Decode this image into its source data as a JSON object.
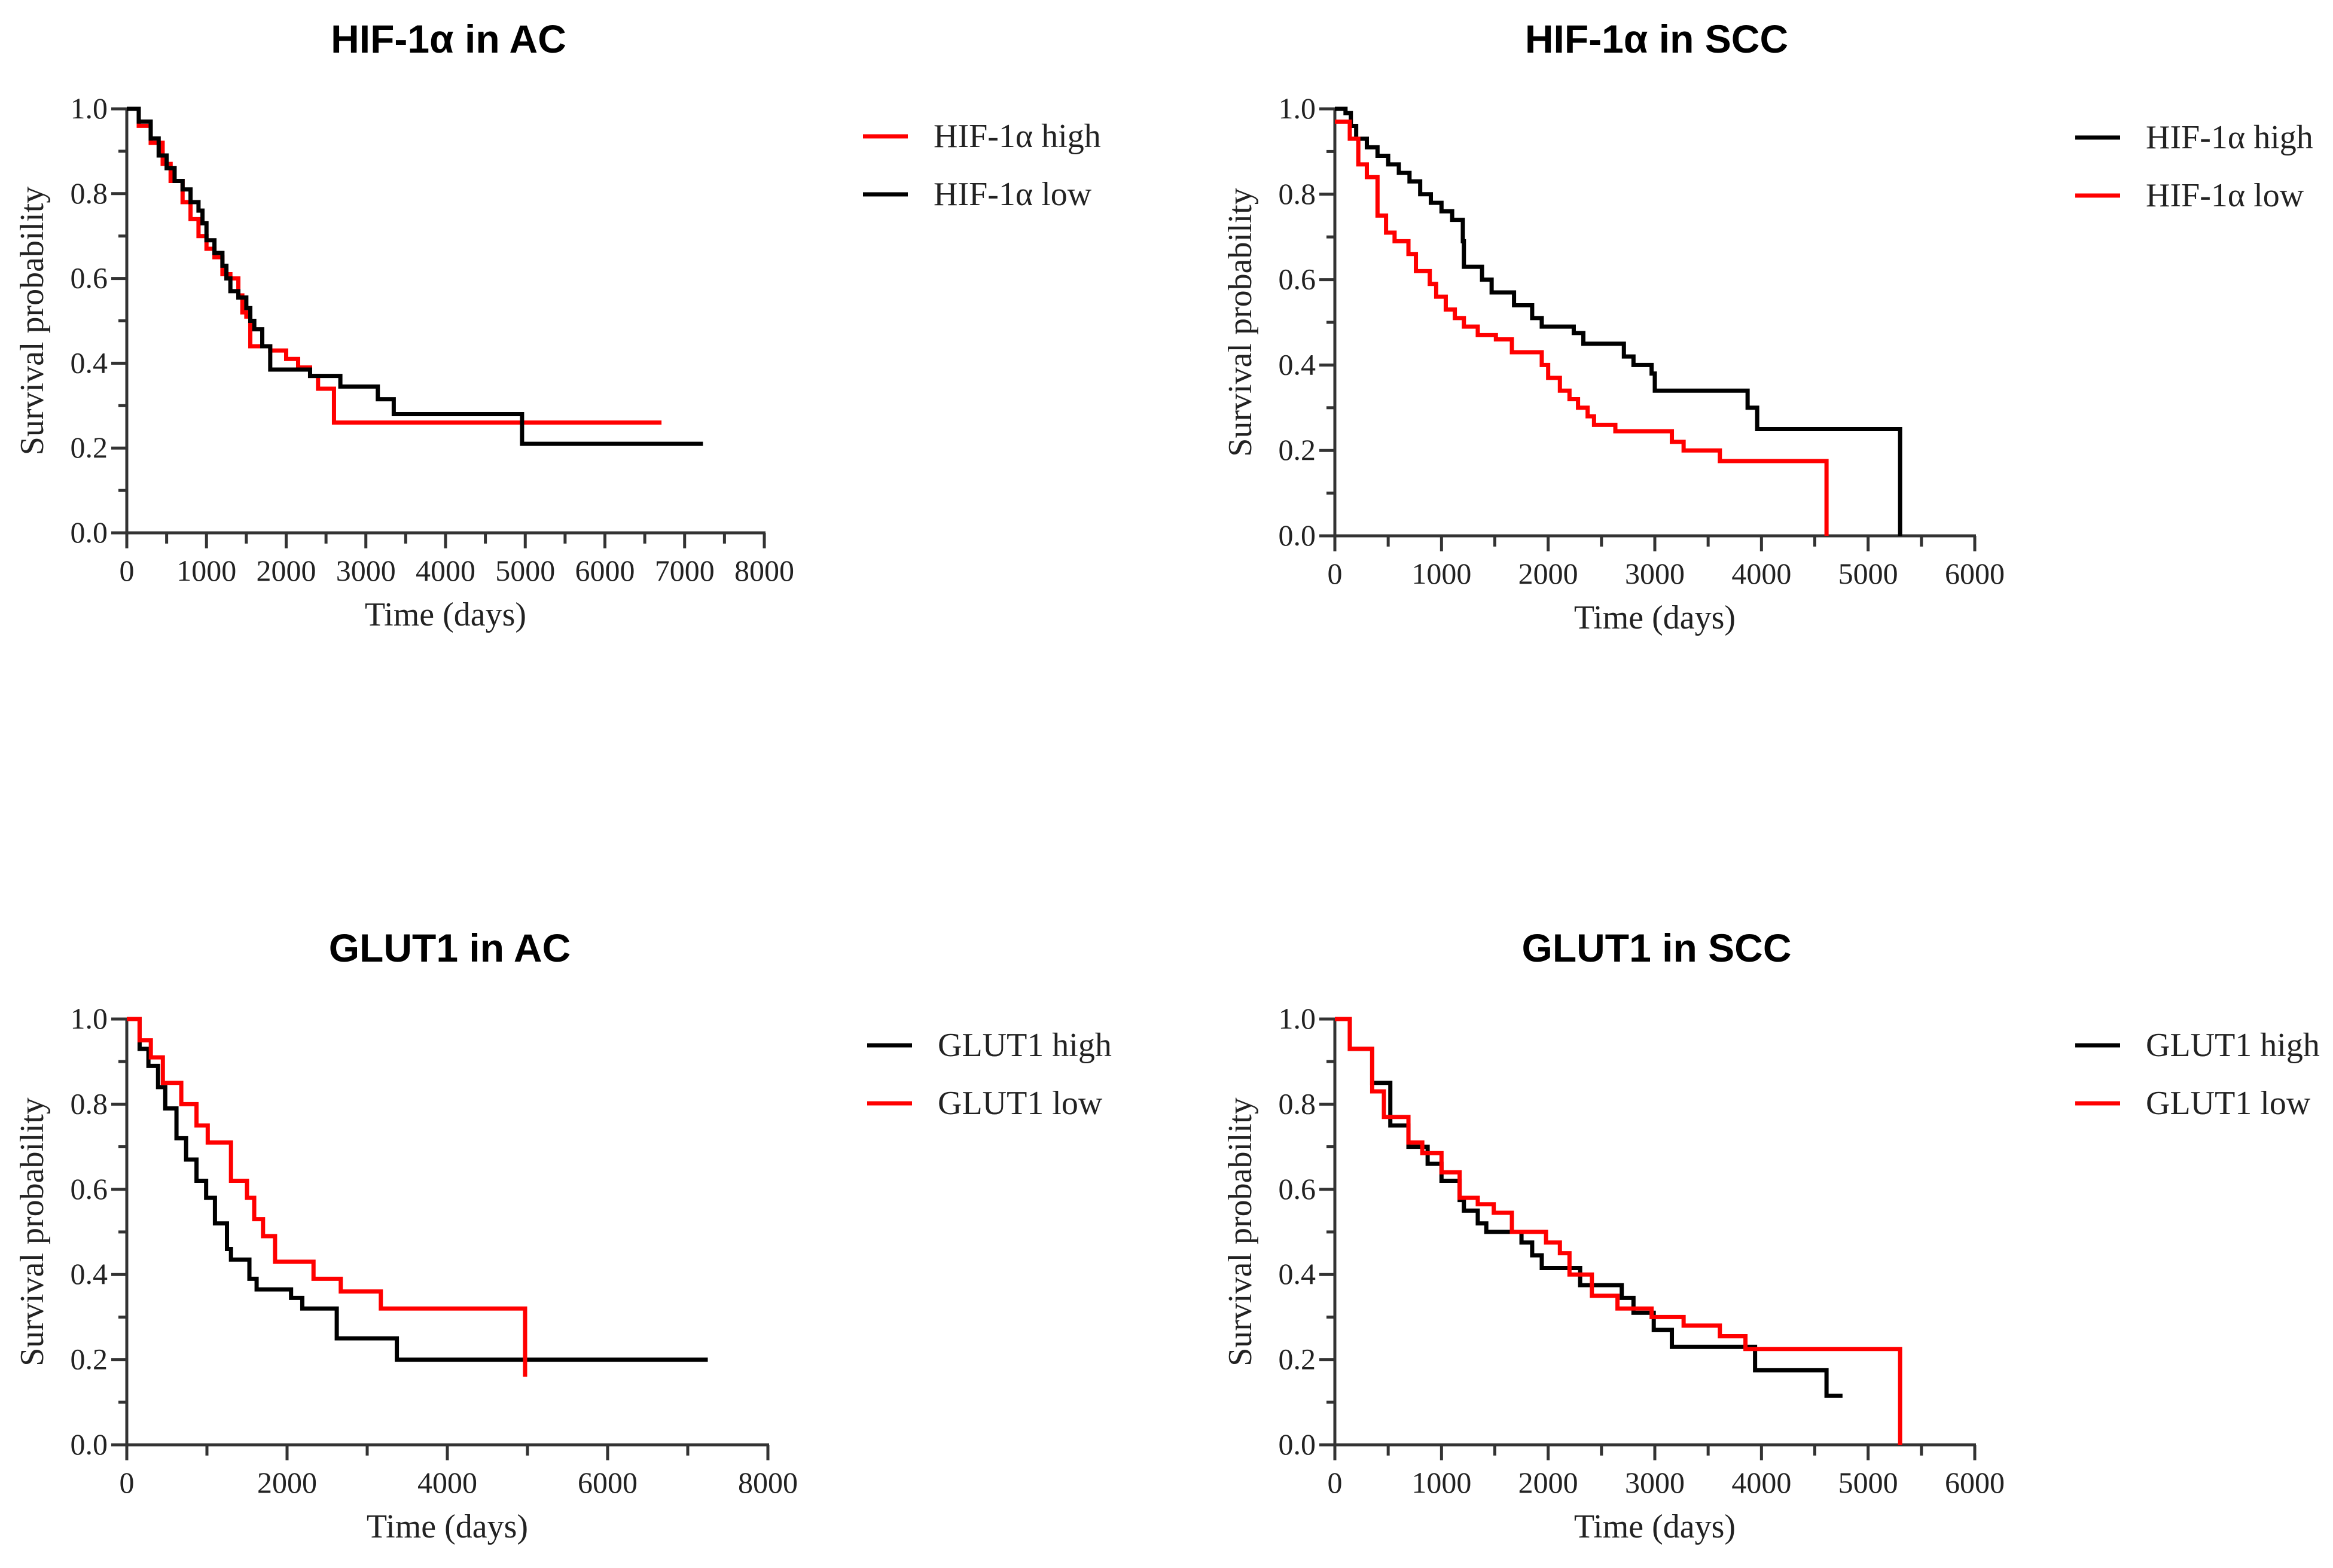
{
  "colors": {
    "red": "#ff0000",
    "black": "#000000"
  },
  "chart_data": [
    {
      "type": "line",
      "title": "HIF-1α in AC",
      "xlabel": "Time (days)",
      "ylabel": "Survival probability",
      "xlim": [
        0,
        8000
      ],
      "ylim": [
        0,
        1
      ],
      "xticks": [
        0,
        1000,
        2000,
        3000,
        4000,
        5000,
        6000,
        7000,
        8000
      ],
      "xtick_labels": [
        "0",
        "1000",
        "2000",
        "3000",
        "4000",
        "5000",
        "6000",
        "7000",
        "8000"
      ],
      "xminor": 500,
      "yticks": [
        0,
        0.2,
        0.4,
        0.6,
        0.8,
        1.0
      ],
      "ytick_labels": [
        "0.0",
        "0.2",
        "0.4",
        "0.6",
        "0.8",
        "1.0"
      ],
      "legend_position": "right",
      "series": [
        {
          "name": "HIF-1α high",
          "color": "#ff0000",
          "points": [
            [
              0,
              1
            ],
            [
              150,
              0.96
            ],
            [
              300,
              0.92
            ],
            [
              450,
              0.87
            ],
            [
              550,
              0.83
            ],
            [
              700,
              0.78
            ],
            [
              800,
              0.74
            ],
            [
              900,
              0.7
            ],
            [
              1000,
              0.67
            ],
            [
              1100,
              0.65
            ],
            [
              1200,
              0.61
            ],
            [
              1300,
              0.6
            ],
            [
              1400,
              0.56
            ],
            [
              1450,
              0.52
            ],
            [
              1500,
              0.51
            ],
            [
              1550,
              0.44
            ],
            [
              1800,
              0.43
            ],
            [
              2000,
              0.41
            ],
            [
              2150,
              0.39
            ],
            [
              2300,
              0.37
            ],
            [
              2400,
              0.34
            ],
            [
              2600,
              0.26
            ],
            [
              6710,
              0.26
            ]
          ]
        },
        {
          "name": "HIF-1α low",
          "color": "#000000",
          "points": [
            [
              0,
              1
            ],
            [
              150,
              0.97
            ],
            [
              300,
              0.93
            ],
            [
              400,
              0.89
            ],
            [
              500,
              0.86
            ],
            [
              600,
              0.83
            ],
            [
              700,
              0.81
            ],
            [
              800,
              0.78
            ],
            [
              900,
              0.76
            ],
            [
              950,
              0.73
            ],
            [
              1000,
              0.69
            ],
            [
              1100,
              0.66
            ],
            [
              1200,
              0.63
            ],
            [
              1250,
              0.6
            ],
            [
              1300,
              0.57
            ],
            [
              1400,
              0.555
            ],
            [
              1500,
              0.53
            ],
            [
              1550,
              0.5
            ],
            [
              1600,
              0.48
            ],
            [
              1700,
              0.44
            ],
            [
              1800,
              0.385
            ],
            [
              2300,
              0.37
            ],
            [
              2680,
              0.345
            ],
            [
              3150,
              0.315
            ],
            [
              3350,
              0.28
            ],
            [
              4960,
              0.21
            ],
            [
              7230,
              0.21
            ]
          ]
        }
      ]
    },
    {
      "type": "line",
      "title": "HIF-1α in SCC",
      "xlabel": "Time (days)",
      "ylabel": "Survival probability",
      "xlim": [
        0,
        6000
      ],
      "ylim": [
        0,
        1
      ],
      "xticks": [
        0,
        1000,
        2000,
        3000,
        4000,
        5000,
        6000
      ],
      "xtick_labels": [
        "0",
        "1000",
        "2000",
        "3000",
        "4000",
        "5000",
        "6000"
      ],
      "xminor": 500,
      "yticks": [
        0,
        0.2,
        0.4,
        0.6,
        0.8,
        1.0
      ],
      "ytick_labels": [
        "0.0",
        "0.2",
        "0.4",
        "0.6",
        "0.8",
        "1.0"
      ],
      "legend_position": "right",
      "series": [
        {
          "name": "HIF-1α high",
          "color": "#000000",
          "points": [
            [
              0,
              1
            ],
            [
              100,
              0.99
            ],
            [
              150,
              0.96
            ],
            [
              200,
              0.93
            ],
            [
              300,
              0.91
            ],
            [
              400,
              0.89
            ],
            [
              500,
              0.87
            ],
            [
              600,
              0.85
            ],
            [
              700,
              0.83
            ],
            [
              800,
              0.8
            ],
            [
              900,
              0.78
            ],
            [
              1000,
              0.76
            ],
            [
              1100,
              0.74
            ],
            [
              1200,
              0.69
            ],
            [
              1210,
              0.63
            ],
            [
              1380,
              0.6
            ],
            [
              1470,
              0.57
            ],
            [
              1680,
              0.54
            ],
            [
              1850,
              0.51
            ],
            [
              1940,
              0.49
            ],
            [
              2240,
              0.475
            ],
            [
              2330,
              0.45
            ],
            [
              2710,
              0.42
            ],
            [
              2800,
              0.4
            ],
            [
              2970,
              0.38
            ],
            [
              3000,
              0.34
            ],
            [
              3870,
              0.3
            ],
            [
              3960,
              0.25
            ],
            [
              5300,
              0.25
            ],
            [
              5300,
              0
            ]
          ]
        },
        {
          "name": "HIF-1α low",
          "color": "#ff0000",
          "points": [
            [
              0,
              0.97
            ],
            [
              140,
              0.93
            ],
            [
              220,
              0.87
            ],
            [
              300,
              0.84
            ],
            [
              400,
              0.75
            ],
            [
              480,
              0.71
            ],
            [
              560,
              0.69
            ],
            [
              690,
              0.66
            ],
            [
              760,
              0.62
            ],
            [
              890,
              0.59
            ],
            [
              950,
              0.56
            ],
            [
              1040,
              0.53
            ],
            [
              1125,
              0.51
            ],
            [
              1210,
              0.49
            ],
            [
              1340,
              0.47
            ],
            [
              1510,
              0.46
            ],
            [
              1660,
              0.43
            ],
            [
              1940,
              0.4
            ],
            [
              2000,
              0.37
            ],
            [
              2110,
              0.34
            ],
            [
              2200,
              0.32
            ],
            [
              2280,
              0.3
            ],
            [
              2370,
              0.28
            ],
            [
              2430,
              0.26
            ],
            [
              2630,
              0.245
            ],
            [
              3160,
              0.22
            ],
            [
              3270,
              0.2
            ],
            [
              3610,
              0.175
            ],
            [
              4610,
              0.175
            ],
            [
              4610,
              0
            ]
          ]
        }
      ]
    },
    {
      "type": "line",
      "title": "GLUT1 in AC",
      "xlabel": "Time (days)",
      "ylabel": "Survival probability",
      "xlim": [
        0,
        8000
      ],
      "ylim": [
        0,
        1
      ],
      "xticks": [
        0,
        2000,
        4000,
        6000,
        8000
      ],
      "xtick_labels": [
        "0",
        "2000",
        "4000",
        "6000",
        "8000"
      ],
      "xminor": 1000,
      "yticks": [
        0,
        0.2,
        0.4,
        0.6,
        0.8,
        1.0
      ],
      "ytick_labels": [
        "0.0",
        "0.2",
        "0.4",
        "0.6",
        "0.8",
        "1.0"
      ],
      "legend_position": "right",
      "series": [
        {
          "name": "GLUT1 high",
          "color": "#000000",
          "points": [
            [
              0,
              1
            ],
            [
              160,
              0.93
            ],
            [
              270,
              0.89
            ],
            [
              390,
              0.84
            ],
            [
              480,
              0.79
            ],
            [
              620,
              0.72
            ],
            [
              740,
              0.67
            ],
            [
              870,
              0.62
            ],
            [
              990,
              0.58
            ],
            [
              1100,
              0.52
            ],
            [
              1250,
              0.46
            ],
            [
              1300,
              0.435
            ],
            [
              1530,
              0.39
            ],
            [
              1620,
              0.365
            ],
            [
              2050,
              0.345
            ],
            [
              2190,
              0.32
            ],
            [
              2620,
              0.25
            ],
            [
              3370,
              0.2
            ],
            [
              7250,
              0.2
            ]
          ]
        },
        {
          "name": "GLUT1 low",
          "color": "#ff0000",
          "points": [
            [
              0,
              1
            ],
            [
              160,
              0.95
            ],
            [
              300,
              0.91
            ],
            [
              450,
              0.85
            ],
            [
              680,
              0.8
            ],
            [
              870,
              0.75
            ],
            [
              1010,
              0.71
            ],
            [
              1300,
              0.62
            ],
            [
              1500,
              0.58
            ],
            [
              1590,
              0.53
            ],
            [
              1700,
              0.49
            ],
            [
              1850,
              0.43
            ],
            [
              2330,
              0.39
            ],
            [
              2670,
              0.36
            ],
            [
              3170,
              0.32
            ],
            [
              4970,
              0.32
            ],
            [
              4970,
              0.16
            ]
          ]
        }
      ]
    },
    {
      "type": "line",
      "title": "GLUT1 in SCC",
      "xlabel": "Time (days)",
      "ylabel": "Survival probability",
      "xlim": [
        0,
        6000
      ],
      "ylim": [
        0,
        1
      ],
      "xticks": [
        0,
        1000,
        2000,
        3000,
        4000,
        5000,
        6000
      ],
      "xtick_labels": [
        "0",
        "1000",
        "2000",
        "3000",
        "4000",
        "5000",
        "6000"
      ],
      "xminor": 500,
      "yticks": [
        0,
        0.2,
        0.4,
        0.6,
        0.8,
        1.0
      ],
      "ytick_labels": [
        "0.0",
        "0.2",
        "0.4",
        "0.6",
        "0.8",
        "1.0"
      ],
      "legend_position": "right",
      "series": [
        {
          "name": "GLUT1 high",
          "color": "#000000",
          "points": [
            [
              0,
              1
            ],
            [
              140,
              0.93
            ],
            [
              350,
              0.85
            ],
            [
              520,
              0.75
            ],
            [
              690,
              0.7
            ],
            [
              870,
              0.66
            ],
            [
              1000,
              0.62
            ],
            [
              1170,
              0.575
            ],
            [
              1210,
              0.55
            ],
            [
              1340,
              0.52
            ],
            [
              1420,
              0.5
            ],
            [
              1750,
              0.475
            ],
            [
              1850,
              0.445
            ],
            [
              1940,
              0.415
            ],
            [
              2300,
              0.375
            ],
            [
              2690,
              0.345
            ],
            [
              2800,
              0.31
            ],
            [
              2990,
              0.27
            ],
            [
              3160,
              0.23
            ],
            [
              3940,
              0.175
            ],
            [
              4610,
              0.115
            ],
            [
              4760,
              0.115
            ]
          ]
        },
        {
          "name": "GLUT1 low",
          "color": "#ff0000",
          "points": [
            [
              0,
              1
            ],
            [
              140,
              0.93
            ],
            [
              350,
              0.83
            ],
            [
              460,
              0.77
            ],
            [
              690,
              0.71
            ],
            [
              820,
              0.685
            ],
            [
              1000,
              0.64
            ],
            [
              1170,
              0.58
            ],
            [
              1340,
              0.565
            ],
            [
              1490,
              0.545
            ],
            [
              1660,
              0.5
            ],
            [
              1980,
              0.475
            ],
            [
              2110,
              0.45
            ],
            [
              2200,
              0.4
            ],
            [
              2410,
              0.35
            ],
            [
              2650,
              0.32
            ],
            [
              2970,
              0.3
            ],
            [
              3270,
              0.28
            ],
            [
              3610,
              0.255
            ],
            [
              3850,
              0.225
            ],
            [
              5300,
              0.225
            ],
            [
              5300,
              0
            ]
          ]
        }
      ]
    }
  ]
}
